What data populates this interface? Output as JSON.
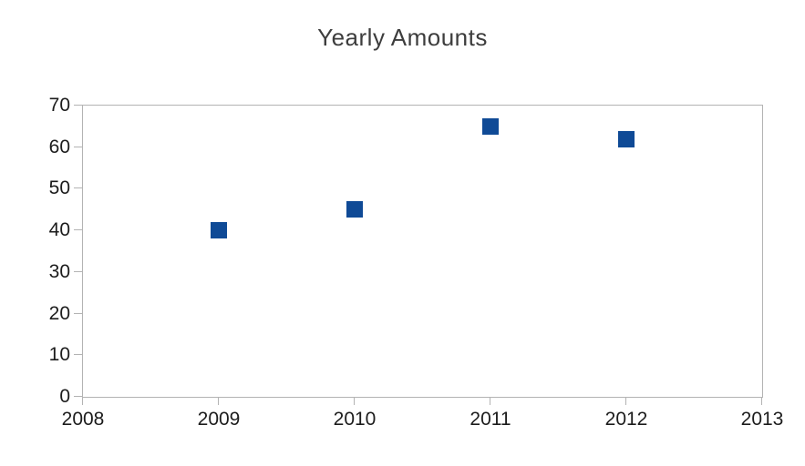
{
  "title": "Yearly Amounts",
  "colors": {
    "marker": "#0f4a96",
    "axis": "#b3b3b3",
    "text": "#1c1c1c",
    "title_text": "#3d3d3d",
    "background": "#ffffff"
  },
  "chart_data": {
    "type": "scatter",
    "title": "Yearly Amounts",
    "x": [
      2009,
      2010,
      2011,
      2012
    ],
    "y": [
      40,
      45,
      65,
      62
    ],
    "series_name": "",
    "xlabel": "",
    "ylabel": "",
    "xlim": [
      2008,
      2013
    ],
    "ylim": [
      0,
      70
    ],
    "x_ticks": [
      2008,
      2009,
      2010,
      2011,
      2012,
      2013
    ],
    "y_ticks": [
      0,
      10,
      20,
      30,
      40,
      50,
      60,
      70
    ],
    "grid": false,
    "legend": "none",
    "marker_shape": "filled-square",
    "plot_border": true
  }
}
